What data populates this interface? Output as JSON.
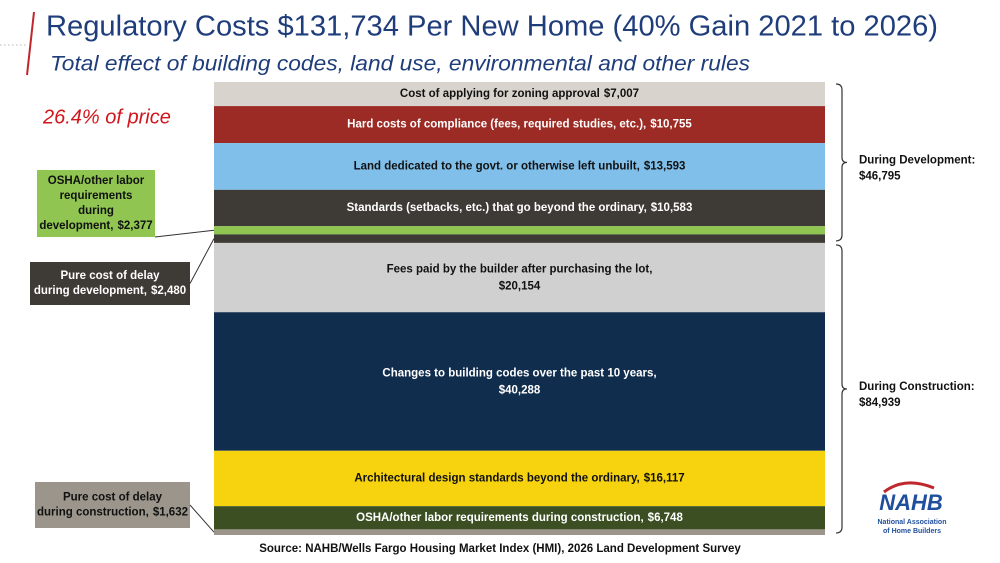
{
  "chart_data": {
    "type": "stacked-bar",
    "title": "Regulatory Costs $131,734 Per New Home (40% Gain 2021 to 2026)",
    "subtitle": "Total effect of building codes, land use, environmental and other rules",
    "annotation": "26.4% of price",
    "source": "Source: NAHB/Wells Fargo Housing Market Index (HMI), 2026 Land Development Survey",
    "series": [
      {
        "name": "Cost of applying for zoning approval",
        "color": "#d9d3cd",
        "values": [
          7007
        ],
        "value_labels": [
          "$7,007"
        ]
      },
      {
        "name": "Hard costs of compliance (fees, required studies, etc.),",
        "color": "#9b2b24",
        "values": [
          10755
        ],
        "value_labels": [
          "$10,755"
        ]
      },
      {
        "name": "Land dedicated to the govt. or otherwise left unbuilt,",
        "color": "#7fbfe9",
        "values": [
          13593
        ],
        "value_labels": [
          "$13,593"
        ]
      },
      {
        "name": "Standards (setbacks, etc.) that go beyond the ordinary,",
        "color": "#3e3a35",
        "values": [
          10583
        ],
        "value_labels": [
          "$10,583"
        ]
      },
      {
        "name": "OSHA/other labor requirements during development,",
        "color": "#8fc550",
        "values": [
          2377
        ],
        "value_labels": [
          "$2,377"
        ],
        "callout": true
      },
      {
        "name": "Pure cost of delay during development,",
        "color": "#3e3a35",
        "values": [
          2480
        ],
        "value_labels": [
          "$2,480"
        ],
        "callout": true
      },
      {
        "name": "Fees paid by the builder after purchasing the lot,",
        "color": "#d0d0d0",
        "values": [
          20154
        ],
        "value_labels": [
          "$20,154"
        ]
      },
      {
        "name": "Changes to building codes over the past 10 years,",
        "color": "#112d4e",
        "values": [
          40288
        ],
        "value_labels": [
          "$40,288"
        ]
      },
      {
        "name": "Architectural design standards beyond the ordinary,",
        "color": "#f6d20f",
        "values": [
          16117
        ],
        "value_labels": [
          "$16,117"
        ]
      },
      {
        "name": "OSHA/other labor requirements during construction,",
        "color": "#3b4f22",
        "values": [
          6748
        ],
        "value_labels": [
          "$6,748"
        ]
      },
      {
        "name": "Pure cost of delay during construction,",
        "color": "#9b958b",
        "values": [
          1632
        ],
        "value_labels": [
          "$1,632"
        ],
        "callout": true
      }
    ],
    "groups": [
      {
        "label": "During Development:",
        "value": 46795,
        "value_label": "$46,795"
      },
      {
        "label": "During Construction:",
        "value": 84939,
        "value_label": "$84,939"
      }
    ]
  },
  "logo": {
    "name": "NAHB",
    "lines": [
      "National Association",
      "of Home Builders"
    ]
  }
}
